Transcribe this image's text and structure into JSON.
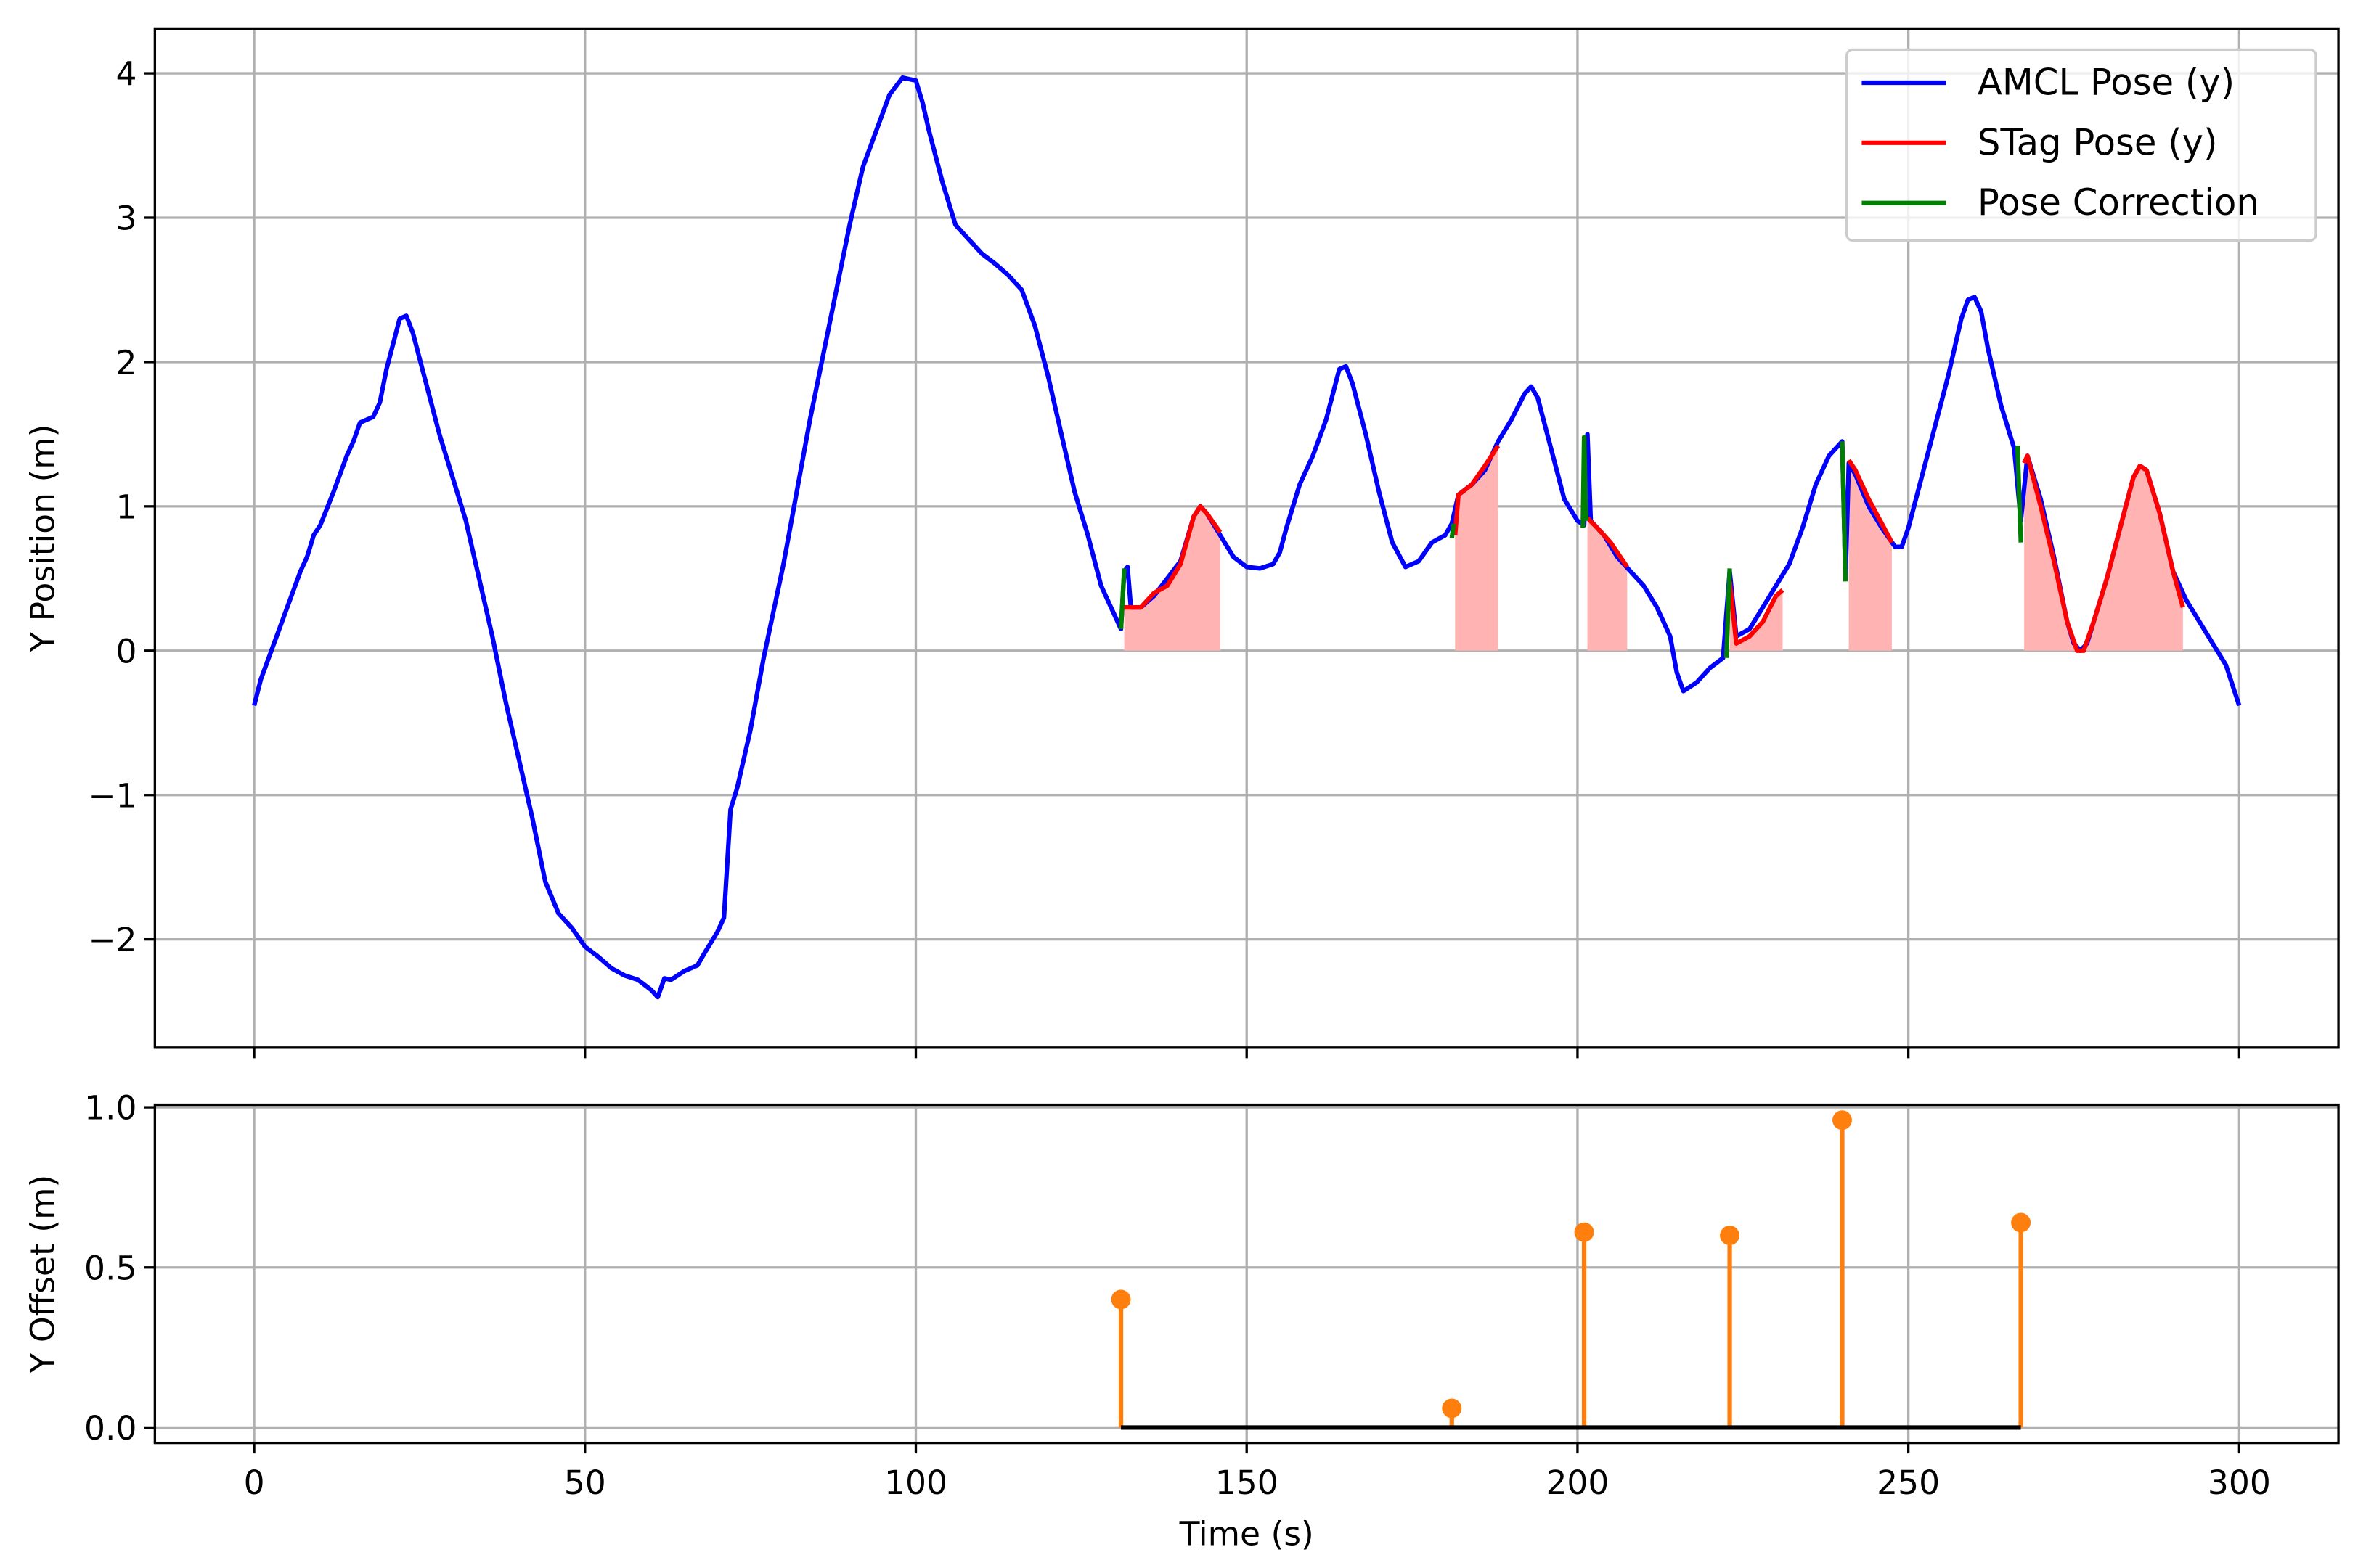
{
  "chart_data": [
    {
      "type": "line",
      "ylabel": "Y Position (m)",
      "xlim": [
        -15,
        315
      ],
      "ylim": [
        -2.75,
        4.31
      ],
      "xticks": [
        0,
        50,
        100,
        150,
        200,
        250,
        300
      ],
      "show_xtick_labels": false,
      "yticks": [
        {
          "value": -2,
          "label": "−2"
        },
        {
          "value": -1,
          "label": "−1"
        },
        0,
        1,
        2,
        3,
        4
      ],
      "grid": true,
      "legend": "upper right",
      "series": [
        {
          "name": "AMCL Pose (y)",
          "color": "#0000ff",
          "x": [
            0,
            1,
            3,
            5,
            7,
            8,
            9,
            10,
            12,
            14,
            15,
            16,
            18,
            19,
            20,
            22,
            23,
            24,
            26,
            28,
            30,
            32,
            34,
            36,
            38,
            40,
            42,
            44,
            46,
            48,
            50,
            52,
            54,
            56,
            58,
            60,
            61,
            62,
            63,
            65,
            67,
            68,
            70,
            71,
            72,
            73,
            75,
            77,
            80,
            82,
            84,
            86,
            88,
            90,
            92,
            94,
            96,
            98,
            100,
            101,
            102,
            104,
            106,
            108,
            110,
            112,
            114,
            116,
            118,
            120,
            122,
            124,
            126,
            128,
            130,
            131,
            131.5,
            132,
            132.5,
            134,
            136,
            138,
            140,
            142,
            143,
            144,
            146,
            148,
            150,
            152,
            154,
            155,
            156,
            158,
            160,
            162,
            164,
            165,
            166,
            168,
            170,
            172,
            174,
            176,
            178,
            180,
            181,
            182,
            184,
            186,
            188,
            190,
            192,
            193,
            194,
            196,
            198,
            200,
            201,
            201.5,
            202,
            204,
            206,
            208,
            210,
            212,
            214,
            215,
            216,
            218,
            220,
            222,
            223,
            224,
            226,
            228,
            230,
            232,
            234,
            236,
            238,
            240,
            240.5,
            241,
            242,
            244,
            246,
            248,
            249,
            250,
            252,
            254,
            256,
            258,
            259,
            260,
            261,
            262,
            264,
            266,
            267,
            268,
            270,
            272,
            274,
            275,
            276,
            277,
            278,
            280,
            282,
            284,
            285,
            286,
            288,
            290,
            292,
            294,
            296,
            298,
            300
          ],
          "values": [
            -0.38,
            -0.2,
            0.05,
            0.3,
            0.55,
            0.65,
            0.8,
            0.87,
            1.1,
            1.35,
            1.45,
            1.58,
            1.62,
            1.72,
            1.95,
            2.3,
            2.32,
            2.2,
            1.85,
            1.5,
            1.2,
            0.9,
            0.5,
            0.1,
            -0.35,
            -0.75,
            -1.15,
            -1.6,
            -1.82,
            -1.92,
            -2.05,
            -2.12,
            -2.2,
            -2.25,
            -2.28,
            -2.35,
            -2.4,
            -2.27,
            -2.28,
            -2.22,
            -2.18,
            -2.1,
            -1.95,
            -1.85,
            -1.1,
            -0.95,
            -0.55,
            -0.05,
            0.6,
            1.1,
            1.6,
            2.05,
            2.5,
            2.95,
            3.35,
            3.6,
            3.85,
            3.97,
            3.95,
            3.8,
            3.6,
            3.25,
            2.95,
            2.85,
            2.75,
            2.68,
            2.6,
            2.5,
            2.25,
            1.9,
            1.5,
            1.1,
            0.8,
            0.45,
            0.25,
            0.15,
            0.55,
            0.58,
            0.3,
            0.3,
            0.38,
            0.5,
            0.62,
            0.93,
            1.0,
            0.95,
            0.8,
            0.65,
            0.58,
            0.57,
            0.6,
            0.68,
            0.85,
            1.15,
            1.35,
            1.6,
            1.95,
            1.97,
            1.85,
            1.5,
            1.1,
            0.75,
            0.58,
            0.62,
            0.75,
            0.8,
            0.88,
            1.08,
            1.15,
            1.25,
            1.45,
            1.6,
            1.78,
            1.83,
            1.75,
            1.4,
            1.05,
            0.9,
            0.87,
            1.5,
            0.9,
            0.8,
            0.65,
            0.55,
            0.45,
            0.3,
            0.1,
            -0.15,
            -0.28,
            -0.22,
            -0.12,
            -0.05,
            0.55,
            0.1,
            0.15,
            0.3,
            0.45,
            0.6,
            0.85,
            1.15,
            1.35,
            1.45,
            0.5,
            1.3,
            1.22,
            1.0,
            0.85,
            0.72,
            0.72,
            0.85,
            1.2,
            1.55,
            1.9,
            2.3,
            2.43,
            2.45,
            2.35,
            2.1,
            1.7,
            1.4,
            0.9,
            1.35,
            1.05,
            0.65,
            0.2,
            0.05,
            0.0,
            0.05,
            0.2,
            0.5,
            0.85,
            1.2,
            1.28,
            1.25,
            0.95,
            0.55,
            0.35,
            0.2,
            0.05,
            -0.1,
            -0.38
          ]
        },
        {
          "name": "STag Pose (y)",
          "color": "#ff0000",
          "fill_color": "#ffb3b3",
          "x": [
            131.5,
            134,
            136,
            138,
            140,
            142,
            143,
            144,
            146,
            null,
            181.5,
            182,
            184,
            186,
            188,
            null,
            201.5,
            203,
            205,
            207.5,
            null,
            223,
            224,
            226,
            228,
            230,
            231,
            null,
            241,
            242,
            244,
            246,
            247.5,
            null,
            267.5,
            268,
            270,
            272,
            274,
            275.5,
            276.5,
            278,
            280,
            282,
            284,
            285,
            286,
            288,
            290,
            291.5
          ],
          "values": [
            0.3,
            0.3,
            0.4,
            0.45,
            0.6,
            0.93,
            1.0,
            0.95,
            0.82,
            null,
            0.8,
            1.08,
            1.15,
            1.28,
            1.42,
            null,
            0.92,
            0.85,
            0.75,
            0.58,
            null,
            0.48,
            0.05,
            0.1,
            0.2,
            0.38,
            0.42,
            null,
            1.32,
            1.25,
            1.05,
            0.88,
            0.75,
            null,
            1.3,
            1.35,
            1.0,
            0.62,
            0.2,
            0.0,
            0.0,
            0.2,
            0.5,
            0.85,
            1.2,
            1.28,
            1.25,
            0.95,
            0.55,
            0.3
          ]
        },
        {
          "name": "Pose Correction",
          "color": "#008000",
          "x": [
            131,
            131.5,
            null,
            181,
            181.3,
            null,
            200.8,
            201,
            201.3,
            null,
            222.5,
            223,
            null,
            240,
            240.5,
            null,
            266.5,
            267
          ],
          "values": [
            0.15,
            0.57,
            null,
            0.78,
            0.88,
            null,
            0.85,
            1.48,
            0.9,
            null,
            -0.05,
            0.57,
            null,
            1.45,
            0.48,
            null,
            1.42,
            0.75
          ]
        }
      ]
    },
    {
      "type": "stem",
      "xlabel": "Time (s)",
      "ylabel": "Y Offset (m)",
      "xlim": [
        -15,
        315
      ],
      "ylim": [
        -0.048,
        1.008
      ],
      "xticks": [
        0,
        50,
        100,
        150,
        200,
        250,
        300
      ],
      "yticks": [
        {
          "value": 0,
          "label": "0.0"
        },
        {
          "value": 0.5,
          "label": "0.5"
        },
        {
          "value": 1,
          "label": "1.0"
        }
      ],
      "grid": true,
      "color": "#ff7f0e",
      "x": [
        131,
        181,
        201,
        223,
        240,
        267
      ],
      "values": [
        0.4,
        0.06,
        0.61,
        0.6,
        0.96,
        0.64
      ]
    }
  ]
}
